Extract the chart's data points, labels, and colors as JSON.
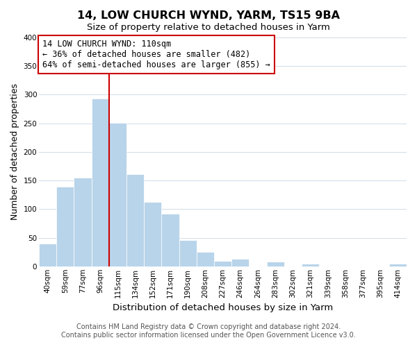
{
  "title": "14, LOW CHURCH WYND, YARM, TS15 9BA",
  "subtitle": "Size of property relative to detached houses in Yarm",
  "xlabel": "Distribution of detached houses by size in Yarm",
  "ylabel": "Number of detached properties",
  "bar_labels": [
    "40sqm",
    "59sqm",
    "77sqm",
    "96sqm",
    "115sqm",
    "134sqm",
    "152sqm",
    "171sqm",
    "190sqm",
    "208sqm",
    "227sqm",
    "246sqm",
    "264sqm",
    "283sqm",
    "302sqm",
    "321sqm",
    "339sqm",
    "358sqm",
    "377sqm",
    "395sqm",
    "414sqm"
  ],
  "bar_values": [
    40,
    139,
    155,
    293,
    251,
    161,
    113,
    92,
    46,
    25,
    10,
    13,
    0,
    8,
    0,
    5,
    0,
    0,
    0,
    0,
    4
  ],
  "bar_color": "#b8d4ea",
  "bar_edge_color": "#b8d4ea",
  "vline_x_idx": 4,
  "vline_color": "#cc0000",
  "annotation_line1": "14 LOW CHURCH WYND: 110sqm",
  "annotation_line2": "← 36% of detached houses are smaller (482)",
  "annotation_line3": "64% of semi-detached houses are larger (855) →",
  "annotation_box_color": "white",
  "annotation_box_edge_color": "#cc0000",
  "ylim": [
    0,
    400
  ],
  "yticks": [
    0,
    50,
    100,
    150,
    200,
    250,
    300,
    350,
    400
  ],
  "grid_color": "#d0dce8",
  "footnote1": "Contains HM Land Registry data © Crown copyright and database right 2024.",
  "footnote2": "Contains public sector information licensed under the Open Government Licence v3.0.",
  "title_fontsize": 11.5,
  "subtitle_fontsize": 9.5,
  "xlabel_fontsize": 9.5,
  "ylabel_fontsize": 9,
  "tick_fontsize": 7.5,
  "annotation_fontsize": 8.5,
  "footnote_fontsize": 7
}
